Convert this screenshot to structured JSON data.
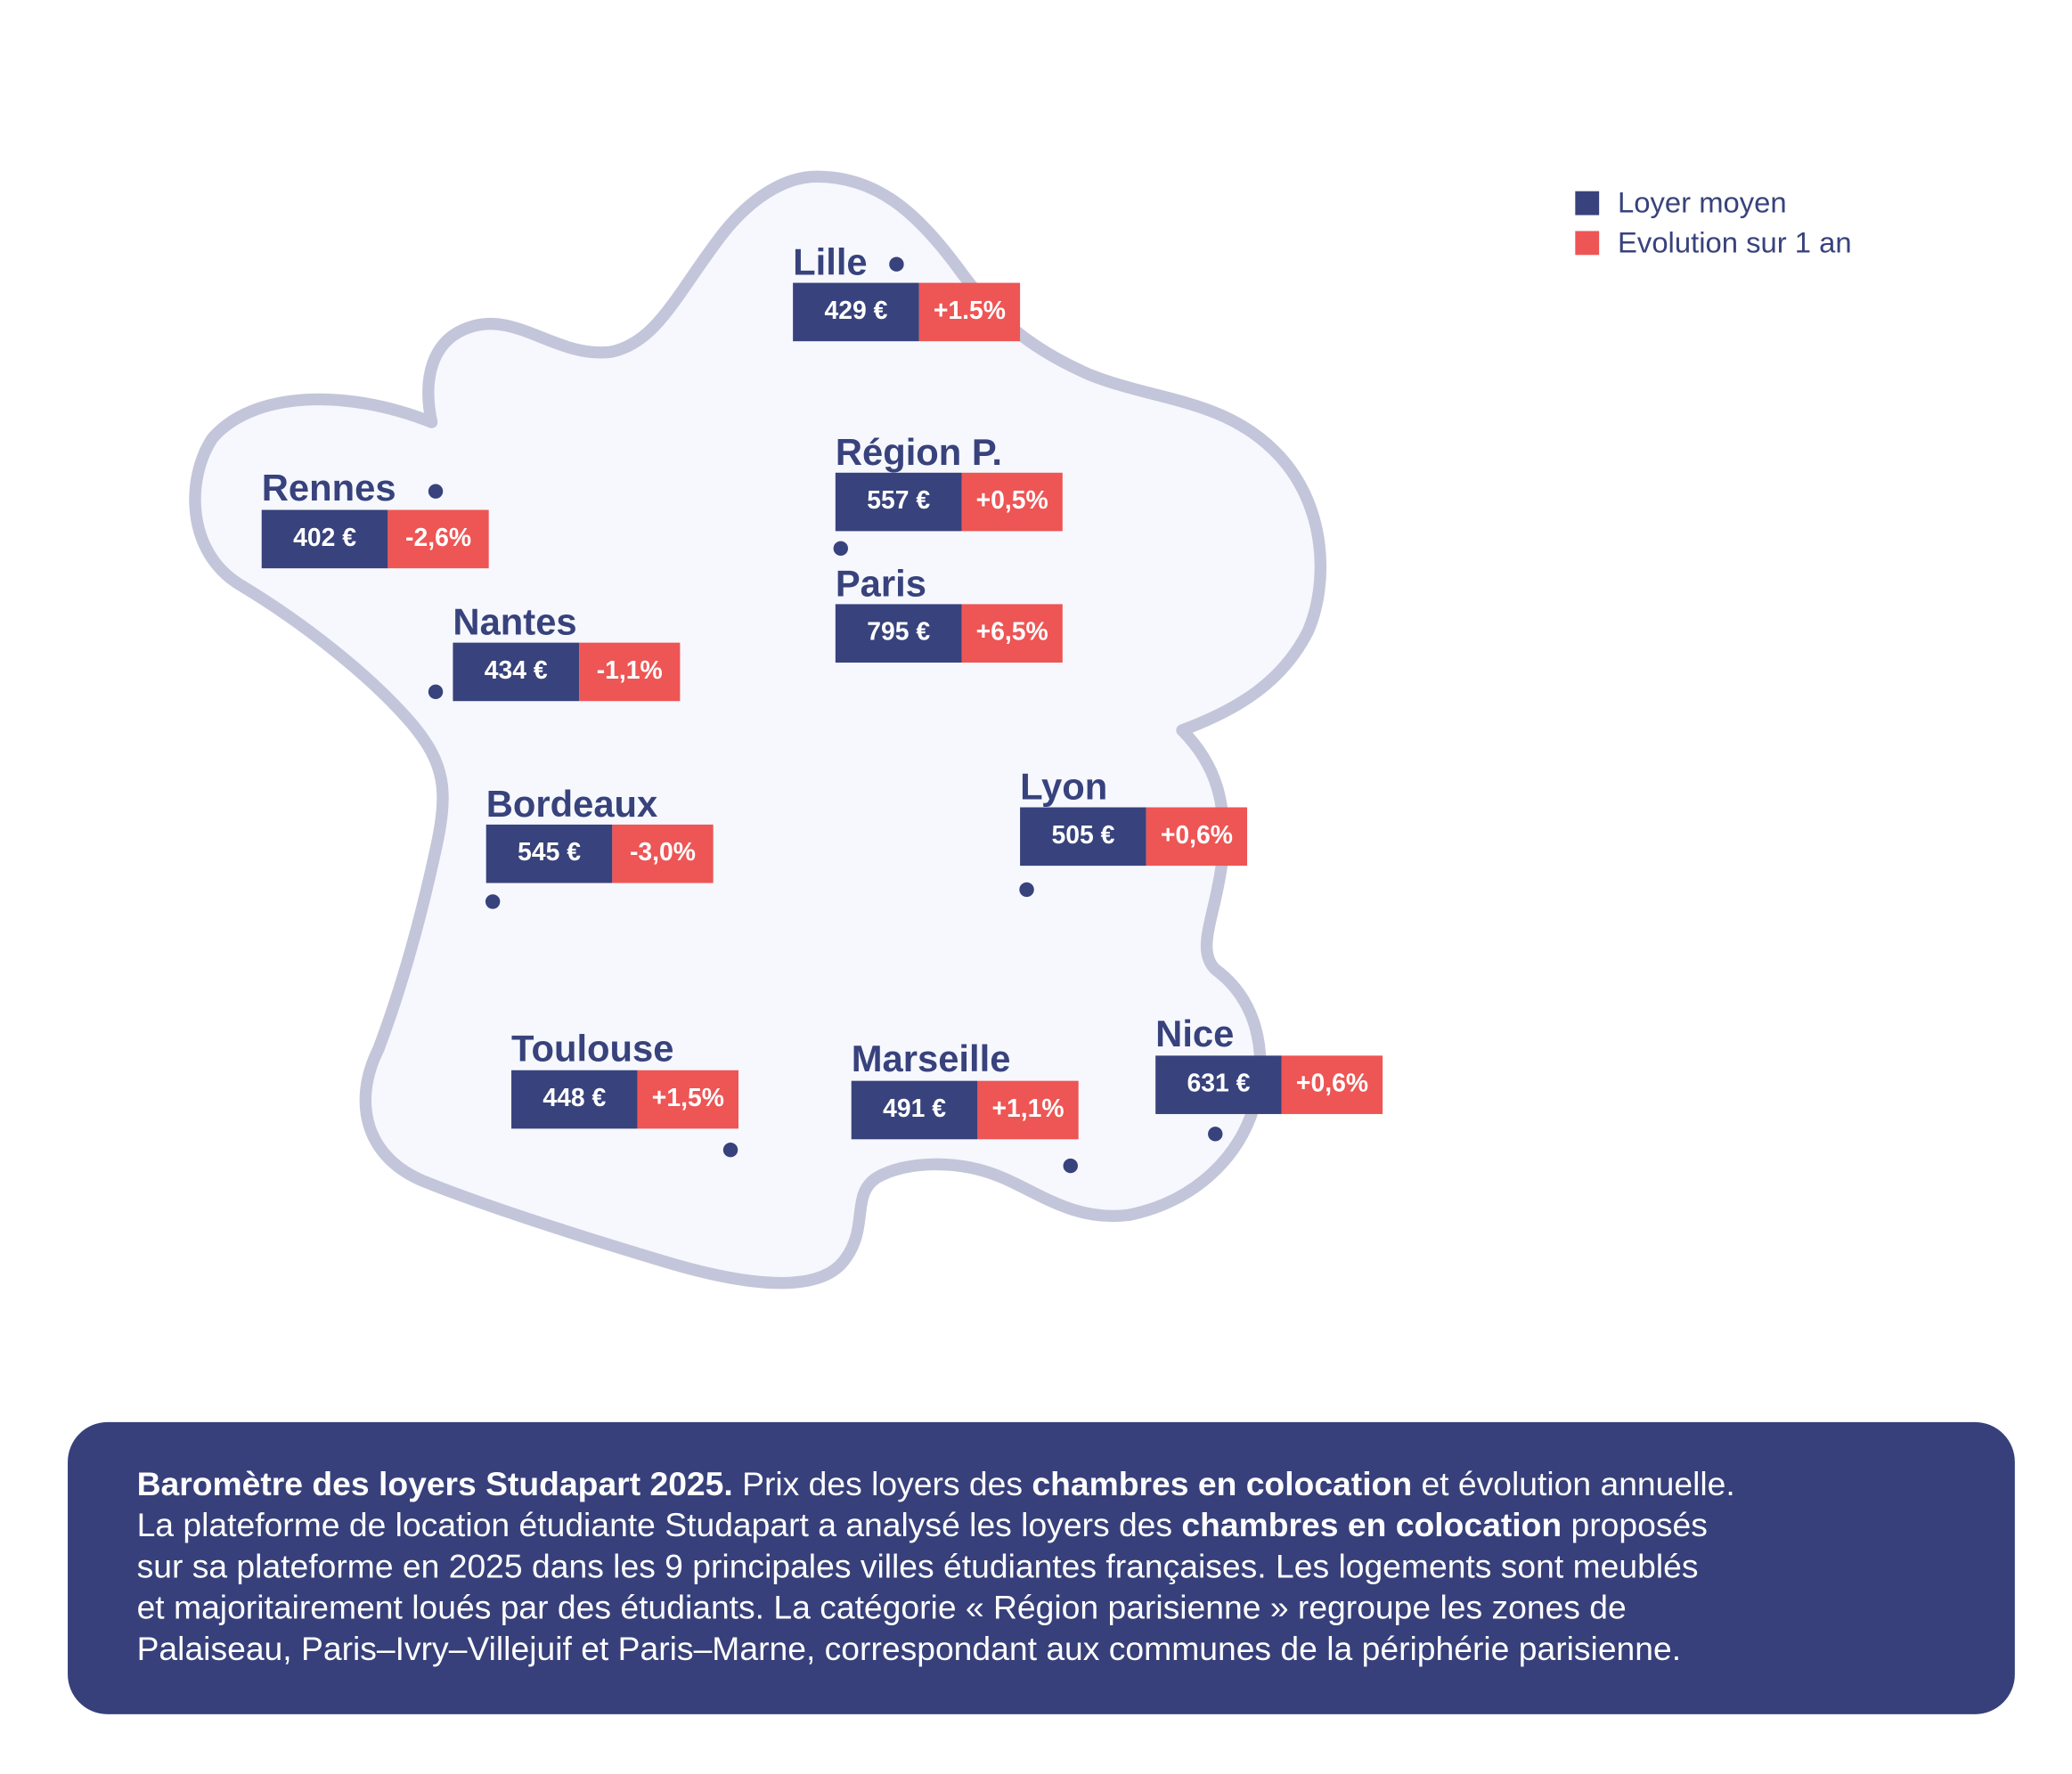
{
  "chart_data": {
    "type": "map",
    "legend": {
      "placement": "top-right",
      "items": [
        {
          "label": "Loyer moyen",
          "color": "#38427c"
        },
        {
          "label": "Evolution sur 1 an",
          "color": "#ee5555"
        }
      ]
    },
    "cities": [
      {
        "name": "Lille",
        "rent": "429 €",
        "evolution": "+1.5%"
      },
      {
        "name": "Région P.",
        "rent": "557 €",
        "evolution": "+0,5%"
      },
      {
        "name": "Paris",
        "rent": "795 €",
        "evolution": "+6,5%"
      },
      {
        "name": "Rennes",
        "rent": "402 €",
        "evolution": "-2,6%"
      },
      {
        "name": "Nantes",
        "rent": "434 €",
        "evolution": "-1,1%"
      },
      {
        "name": "Bordeaux",
        "rent": "545 €",
        "evolution": "-3,0%"
      },
      {
        "name": "Lyon",
        "rent": "505 €",
        "evolution": "+0,6%"
      },
      {
        "name": "Toulouse",
        "rent": "448 €",
        "evolution": "+1,5%"
      },
      {
        "name": "Marseille",
        "rent": "491 €",
        "evolution": "+1,1%"
      },
      {
        "name": "Nice",
        "rent": "631 €",
        "evolution": "+0,6%"
      }
    ]
  },
  "colors": {
    "rent": "#38427c",
    "evolution": "#ee5555",
    "map_fill": "#f6f8fd",
    "map_stroke": "#c3c6da",
    "panel": "#37407a"
  },
  "description": {
    "lines": [
      [
        {
          "t": "Baromètre des loyers Studapart 2025.",
          "b": true
        },
        {
          "t": " Prix des loyers des "
        },
        {
          "t": "chambres en colocation",
          "b": true
        },
        {
          "t": " et évolution annuelle."
        }
      ],
      [
        {
          "t": "La plateforme de location étudiante Studapart a analysé les loyers des "
        },
        {
          "t": "chambres en colocation",
          "b": true
        },
        {
          "t": " proposés"
        }
      ],
      [
        {
          "t": "sur sa plateforme en 2025 dans les 9 principales villes étudiantes françaises. Les logements sont meublés"
        }
      ],
      [
        {
          "t": "et majoritairement loués par des étudiants. La catégorie « Région parisienne » regroupe les zones de"
        }
      ],
      [
        {
          "t": "Palaiseau, Paris–Ivry–Villejuif et Paris–Marne, correspondant aux communes de la périphérie parisienne."
        }
      ]
    ]
  }
}
